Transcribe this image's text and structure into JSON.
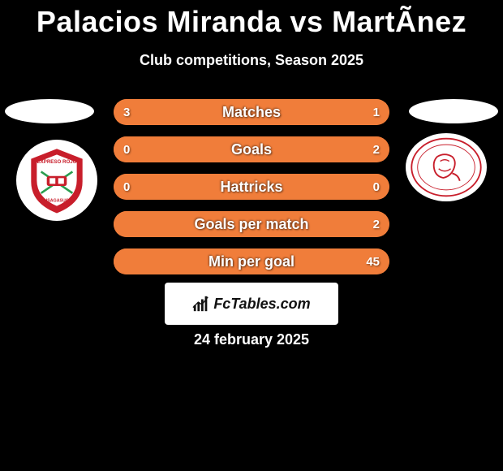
{
  "title": "Palacios Miranda vs MartÃ­nez",
  "subtitle": "Club competitions, Season 2025",
  "date": "24 february 2025",
  "brand": "FcTables.com",
  "colors": {
    "background": "#000000",
    "text": "#ffffff",
    "brand_box": "#ffffff",
    "stat_default": "#f07d3a",
    "badge_left_primary": "#c81e2b",
    "badge_left_secondary": "#2a9d4f",
    "badge_right_primary": "#c81e2b"
  },
  "stats": [
    {
      "label": "Matches",
      "left_value": "3",
      "right_value": "1",
      "left_color": "#f07d3a",
      "right_color": "#f07d3a",
      "left_pct": 75,
      "right_pct": 25
    },
    {
      "label": "Goals",
      "left_value": "0",
      "right_value": "2",
      "left_color": "#f07d3a",
      "right_color": "#f07d3a",
      "left_pct": 0,
      "right_pct": 100
    },
    {
      "label": "Hattricks",
      "left_value": "0",
      "right_value": "0",
      "left_color": "#f07d3a",
      "right_color": "#f07d3a",
      "left_pct": 50,
      "right_pct": 50
    },
    {
      "label": "Goals per match",
      "left_value": "",
      "right_value": "2",
      "left_color": "#f07d3a",
      "right_color": "#f07d3a",
      "left_pct": 0,
      "right_pct": 100
    },
    {
      "label": "Min per goal",
      "left_value": "",
      "right_value": "45",
      "left_color": "#f07d3a",
      "right_color": "#f07d3a",
      "left_pct": 0,
      "right_pct": 100
    }
  ]
}
